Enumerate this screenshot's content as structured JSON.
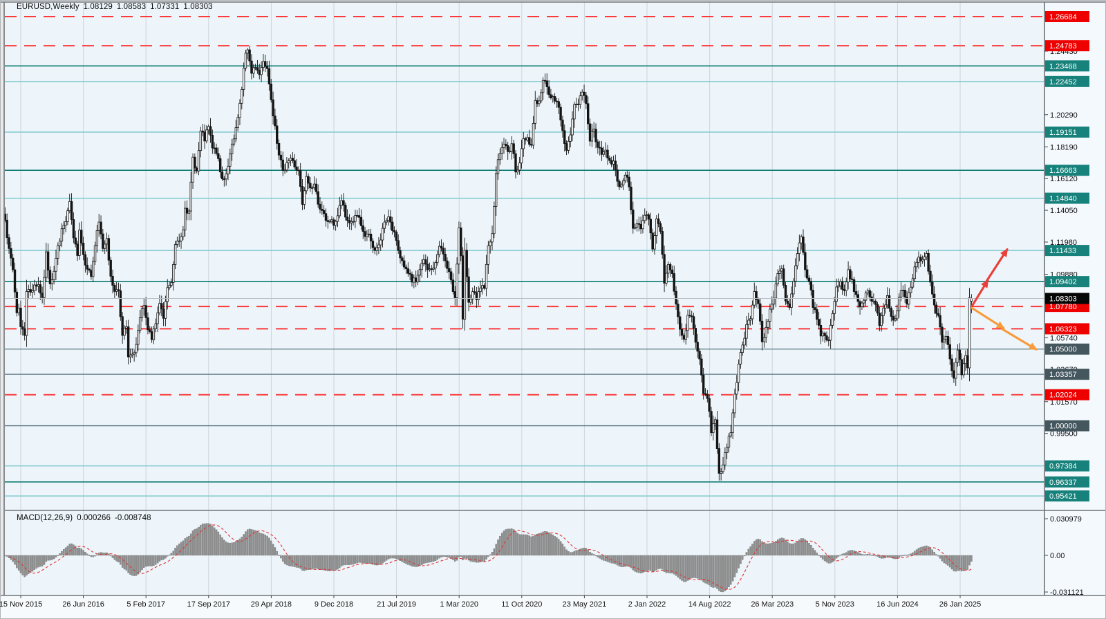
{
  "header": {
    "symbol": "EURUSD,Weekly",
    "open": "1.08129",
    "high": "1.08583",
    "low": "1.07331",
    "close": "1.08303"
  },
  "macd_panel": {
    "label": "MACD(12,26,9)",
    "macd_value": "0.000266",
    "signal_value": "-0.008748"
  },
  "price_axis": {
    "plain_ticks": [
      "1.24430",
      "1.20290",
      "1.18190",
      "1.16120",
      "1.14050",
      "1.11980",
      "1.09880",
      "1.05740",
      "1.03670",
      "1.01570",
      "0.99500"
    ],
    "macd_ticks": [
      {
        "label": "0.030979",
        "value": 0.030979
      },
      {
        "label": "0.00",
        "value": 0
      },
      {
        "label": "-0.031121",
        "value": -0.031121
      }
    ]
  },
  "date_axis": {
    "labels": [
      "15 Nov 2015",
      "26 Jun 2016",
      "5 Feb 2017",
      "17 Sep 2017",
      "29 Apr 2018",
      "9 Dec 2018",
      "21 Jul 2019",
      "1 Mar 2020",
      "11 Oct 2020",
      "23 May 2021",
      "2 Jan 2022",
      "14 Aug 2022",
      "26 Mar 2023",
      "5 Nov 2023",
      "16 Jun 2024",
      "26 Jan 2025"
    ]
  },
  "chart_data": {
    "type": "candlestick",
    "symbol": "EURUSD",
    "timeframe": "Weekly",
    "title": "EURUSD Weekly with MACD(12,26,9)",
    "y_range": {
      "top": 1.2763,
      "bottom": 0.9456
    },
    "current_price": {
      "value": 1.08303,
      "label": "1.08303"
    },
    "last_bar": {
      "open": 1.08129,
      "high": 1.08583,
      "low": 1.07331,
      "close": 1.08303
    },
    "levels": [
      {
        "value": 1.26684,
        "label": "1.26684",
        "style": "red-dashed"
      },
      {
        "value": 1.24783,
        "label": "1.24783",
        "style": "red-dashed"
      },
      {
        "value": 1.23468,
        "label": "1.23468",
        "style": "teal-dark"
      },
      {
        "value": 1.22452,
        "label": "1.22452",
        "style": "teal-light"
      },
      {
        "value": 1.19151,
        "label": "1.19151",
        "style": "teal-light"
      },
      {
        "value": 1.16663,
        "label": "1.16663",
        "style": "teal-dark"
      },
      {
        "value": 1.1484,
        "label": "1.14840",
        "style": "teal-light"
      },
      {
        "value": 1.11433,
        "label": "1.11433",
        "style": "teal-light"
      },
      {
        "value": 1.09402,
        "label": "1.09402",
        "style": "teal-dark"
      },
      {
        "value": 1.0778,
        "label": "1.07780",
        "style": "red-dashed"
      },
      {
        "value": 1.06323,
        "label": "1.06323",
        "style": "red-dashed"
      },
      {
        "value": 1.05,
        "label": "1.05000",
        "style": "slate"
      },
      {
        "value": 1.03357,
        "label": "1.03357",
        "style": "slate"
      },
      {
        "value": 1.02024,
        "label": "1.02024",
        "style": "red-dashed"
      },
      {
        "value": 1.0,
        "label": "1.00000",
        "style": "slate"
      },
      {
        "value": 0.97384,
        "label": "0.97384",
        "style": "teal-light"
      },
      {
        "value": 0.96337,
        "label": "0.96337",
        "style": "teal-dark"
      },
      {
        "value": 0.95421,
        "label": "0.95421",
        "style": "teal-light"
      }
    ],
    "price_path": [
      [
        -8,
        1.1347
      ],
      [
        -6,
        1.115
      ],
      [
        -4,
        1.1017
      ],
      [
        -2,
        1.0737
      ],
      [
        -1,
        1.0771
      ],
      [
        0,
        1.0645
      ],
      [
        2,
        1.0592
      ],
      [
        3,
        1.088
      ],
      [
        5,
        1.0871
      ],
      [
        7,
        1.092
      ],
      [
        9,
        1.092
      ],
      [
        11,
        1.083
      ],
      [
        13,
        1.113
      ],
      [
        15,
        1.093
      ],
      [
        17,
        1.101
      ],
      [
        19,
        1.117
      ],
      [
        21,
        1.128
      ],
      [
        23,
        1.133
      ],
      [
        25,
        1.1457
      ],
      [
        27,
        1.122
      ],
      [
        29,
        1.1116
      ],
      [
        30,
        1.128
      ],
      [
        32,
        1.1117
      ],
      [
        34,
        1.1026
      ],
      [
        36,
        1.0975
      ],
      [
        38,
        1.1175
      ],
      [
        40,
        1.1326
      ],
      [
        42,
        1.1158
      ],
      [
        44,
        1.1226
      ],
      [
        46,
        1.097
      ],
      [
        48,
        1.088
      ],
      [
        50,
        1.0882
      ],
      [
        52,
        1.0587
      ],
      [
        54,
        1.0645
      ],
      [
        55,
        1.0445
      ],
      [
        57,
        1.0462
      ],
      [
        59,
        1.053
      ],
      [
        61,
        1.07
      ],
      [
        63,
        1.078
      ],
      [
        65,
        1.062
      ],
      [
        67,
        1.0561
      ],
      [
        69,
        1.0672
      ],
      [
        71,
        1.08
      ],
      [
        73,
        1.07
      ],
      [
        75,
        1.0895
      ],
      [
        77,
        1.093
      ],
      [
        79,
        1.118
      ],
      [
        81,
        1.1205
      ],
      [
        83,
        1.128
      ],
      [
        84,
        1.1425
      ],
      [
        86,
        1.1395
      ],
      [
        88,
        1.175
      ],
      [
        90,
        1.166
      ],
      [
        92,
        1.192
      ],
      [
        94,
        1.186
      ],
      [
        96,
        1.195
      ],
      [
        98,
        1.181
      ],
      [
        100,
        1.178
      ],
      [
        102,
        1.1655
      ],
      [
        103,
        1.1609
      ],
      [
        105,
        1.1644
      ],
      [
        107,
        1.177
      ],
      [
        109,
        1.1868
      ],
      [
        111,
        1.2005
      ],
      [
        113,
        1.219
      ],
      [
        115,
        1.243
      ],
      [
        116,
        1.2455
      ],
      [
        118,
        1.2295
      ],
      [
        120,
        1.234
      ],
      [
        122,
        1.229
      ],
      [
        124,
        1.238
      ],
      [
        126,
        1.233
      ],
      [
        128,
        1.213
      ],
      [
        130,
        1.196
      ],
      [
        132,
        1.177
      ],
      [
        134,
        1.166
      ],
      [
        136,
        1.172
      ],
      [
        138,
        1.1745
      ],
      [
        140,
        1.169
      ],
      [
        142,
        1.166
      ],
      [
        144,
        1.144
      ],
      [
        146,
        1.1622
      ],
      [
        148,
        1.155
      ],
      [
        150,
        1.1576
      ],
      [
        152,
        1.145
      ],
      [
        154,
        1.14
      ],
      [
        156,
        1.1335
      ],
      [
        158,
        1.1335
      ],
      [
        160,
        1.131
      ],
      [
        162,
        1.137
      ],
      [
        164,
        1.147
      ],
      [
        166,
        1.136
      ],
      [
        168,
        1.1325
      ],
      [
        170,
        1.1335
      ],
      [
        172,
        1.137
      ],
      [
        174,
        1.13
      ],
      [
        176,
        1.1235
      ],
      [
        178,
        1.1245
      ],
      [
        180,
        1.116
      ],
      [
        182,
        1.116
      ],
      [
        184,
        1.121
      ],
      [
        186,
        1.133
      ],
      [
        188,
        1.1368
      ],
      [
        190,
        1.127
      ],
      [
        192,
        1.121
      ],
      [
        194,
        1.11
      ],
      [
        196,
        1.103
      ],
      [
        198,
        1.099
      ],
      [
        200,
        1.094
      ],
      [
        202,
        1.094
      ],
      [
        204,
        1.102
      ],
      [
        206,
        1.108
      ],
      [
        208,
        1.1015
      ],
      [
        210,
        1.102
      ],
      [
        212,
        1.106
      ],
      [
        214,
        1.1175
      ],
      [
        216,
        1.112
      ],
      [
        218,
        1.1025
      ],
      [
        220,
        1.0945
      ],
      [
        222,
        1.084
      ],
      [
        224,
        1.129
      ],
      [
        225,
        1.111
      ],
      [
        226,
        1.069
      ],
      [
        227,
        1.114
      ],
      [
        229,
        1.08
      ],
      [
        231,
        1.0875
      ],
      [
        233,
        1.082
      ],
      [
        235,
        1.09
      ],
      [
        237,
        1.089
      ],
      [
        239,
        1.118
      ],
      [
        241,
        1.125
      ],
      [
        243,
        1.165
      ],
      [
        245,
        1.178
      ],
      [
        247,
        1.184
      ],
      [
        249,
        1.1785
      ],
      [
        251,
        1.184
      ],
      [
        253,
        1.166
      ],
      [
        255,
        1.1715
      ],
      [
        257,
        1.187
      ],
      [
        259,
        1.188
      ],
      [
        261,
        1.183
      ],
      [
        263,
        1.212
      ],
      [
        265,
        1.2115
      ],
      [
        267,
        1.225
      ],
      [
        269,
        1.2216
      ],
      [
        271,
        1.2135
      ],
      [
        273,
        1.212
      ],
      [
        275,
        1.2075
      ],
      [
        277,
        1.193
      ],
      [
        279,
        1.179
      ],
      [
        281,
        1.19
      ],
      [
        283,
        1.21
      ],
      [
        285,
        1.2095
      ],
      [
        287,
        1.218
      ],
      [
        289,
        1.2105
      ],
      [
        291,
        1.186
      ],
      [
        293,
        1.194
      ],
      [
        295,
        1.181
      ],
      [
        297,
        1.177
      ],
      [
        299,
        1.1795
      ],
      [
        301,
        1.173
      ],
      [
        303,
        1.1725
      ],
      [
        305,
        1.159
      ],
      [
        307,
        1.157
      ],
      [
        309,
        1.164
      ],
      [
        311,
        1.156
      ],
      [
        313,
        1.129
      ],
      [
        315,
        1.1315
      ],
      [
        317,
        1.128
      ],
      [
        319,
        1.137
      ],
      [
        321,
        1.1345
      ],
      [
        323,
        1.115
      ],
      [
        325,
        1.135
      ],
      [
        327,
        1.127
      ],
      [
        328,
        1.1121
      ],
      [
        329,
        1.093
      ],
      [
        331,
        1.105
      ],
      [
        333,
        1.099
      ],
      [
        335,
        1.079
      ],
      [
        337,
        1.063
      ],
      [
        339,
        1.056
      ],
      [
        341,
        1.072
      ],
      [
        343,
        1.071
      ],
      [
        345,
        1.055
      ],
      [
        347,
        1.043
      ],
      [
        349,
        1.021
      ],
      [
        351,
        1.018
      ],
      [
        353,
        0.996
      ],
      [
        355,
        1.004
      ],
      [
        357,
        0.969
      ],
      [
        359,
        0.974
      ],
      [
        361,
        0.986
      ],
      [
        363,
        0.996
      ],
      [
        365,
        1.021
      ],
      [
        367,
        1.04
      ],
      [
        369,
        1.053
      ],
      [
        371,
        1.066
      ],
      [
        373,
        1.07
      ],
      [
        375,
        1.087
      ],
      [
        377,
        1.0795
      ],
      [
        379,
        1.055
      ],
      [
        381,
        1.064
      ],
      [
        383,
        1.076
      ],
      [
        385,
        1.083
      ],
      [
        387,
        1.099
      ],
      [
        389,
        1.102
      ],
      [
        391,
        1.081
      ],
      [
        393,
        1.077
      ],
      [
        395,
        1.094
      ],
      [
        397,
        1.112
      ],
      [
        399,
        1.1227
      ],
      [
        401,
        1.1016
      ],
      [
        403,
        1.0945
      ],
      [
        405,
        1.0775
      ],
      [
        407,
        1.07
      ],
      [
        409,
        1.0585
      ],
      [
        411,
        1.059
      ],
      [
        413,
        1.056
      ],
      [
        415,
        1.073
      ],
      [
        417,
        1.091
      ],
      [
        419,
        1.0935
      ],
      [
        421,
        1.0885
      ],
      [
        423,
        1.1015
      ],
      [
        425,
        1.095
      ],
      [
        427,
        1.085
      ],
      [
        429,
        1.077
      ],
      [
        431,
        1.082
      ],
      [
        433,
        1.0885
      ],
      [
        435,
        1.081
      ],
      [
        437,
        1.079
      ],
      [
        439,
        1.0655
      ],
      [
        441,
        1.077
      ],
      [
        443,
        1.085
      ],
      [
        445,
        1.071
      ],
      [
        447,
        1.07
      ],
      [
        449,
        1.084
      ],
      [
        451,
        1.088
      ],
      [
        453,
        1.079
      ],
      [
        455,
        1.091
      ],
      [
        457,
        1.104
      ],
      [
        459,
        1.11
      ],
      [
        461,
        1.1085
      ],
      [
        463,
        1.113
      ],
      [
        465,
        1.0935
      ],
      [
        467,
        1.079
      ],
      [
        469,
        1.072
      ],
      [
        471,
        1.054
      ],
      [
        473,
        1.058
      ],
      [
        475,
        1.043
      ],
      [
        477,
        1.0305
      ],
      [
        479,
        1.049
      ],
      [
        481,
        1.033
      ],
      [
        483,
        1.046
      ],
      [
        484,
        1.038
      ],
      [
        485,
        1.0832
      ],
      [
        486,
        1.08303
      ]
    ],
    "arrows": [
      {
        "name": "bullish-projection",
        "color": "#e9403a",
        "segments": [
          [
            [
              1406,
              1.078
            ],
            [
              1429,
              1.0948
            ]
          ],
          [
            [
              1427,
              1.0942
            ],
            [
              1457,
              1.115
            ]
          ]
        ]
      },
      {
        "name": "bearish-projection",
        "color": "#f79b3c",
        "segments": [
          [
            [
              1406,
              1.0768
            ],
            [
              1452,
              1.0636
            ]
          ],
          [
            [
              1450,
              1.063
            ],
            [
              1499,
              1.0498
            ]
          ]
        ]
      }
    ],
    "macd": {
      "params": "12,26,9",
      "axis_max": 0.030979,
      "axis_min": -0.031121
    }
  },
  "colors": {
    "plot_bg": "#edf5fa",
    "axis_bg": "#f4f9fd",
    "date_bg": "#f7fafc",
    "frame_bg": "#e9e9e9",
    "grid": "#ccd4da",
    "border": "#6f7478",
    "outer_border": "#b0b4b8",
    "red_line": "#fb3a3a",
    "red_box": "#ef0000",
    "teal_dark": "#0e7b74",
    "teal_light": "#7fc9cf",
    "teal_box": "#17827b",
    "slate_line": "#5b7682",
    "slate_box": "#44565e",
    "candle_up": "#fbfbfb",
    "candle_down": "#141414",
    "candle_stroke": "#141414",
    "current_line": "#b9bdc0",
    "current_box": "#060606",
    "macd_bar": "#8f8f8f",
    "macd_bar_stroke": "#6e6e6e",
    "macd_signal": "#e03434",
    "text": "#101010",
    "label_text": "#ffffff"
  }
}
